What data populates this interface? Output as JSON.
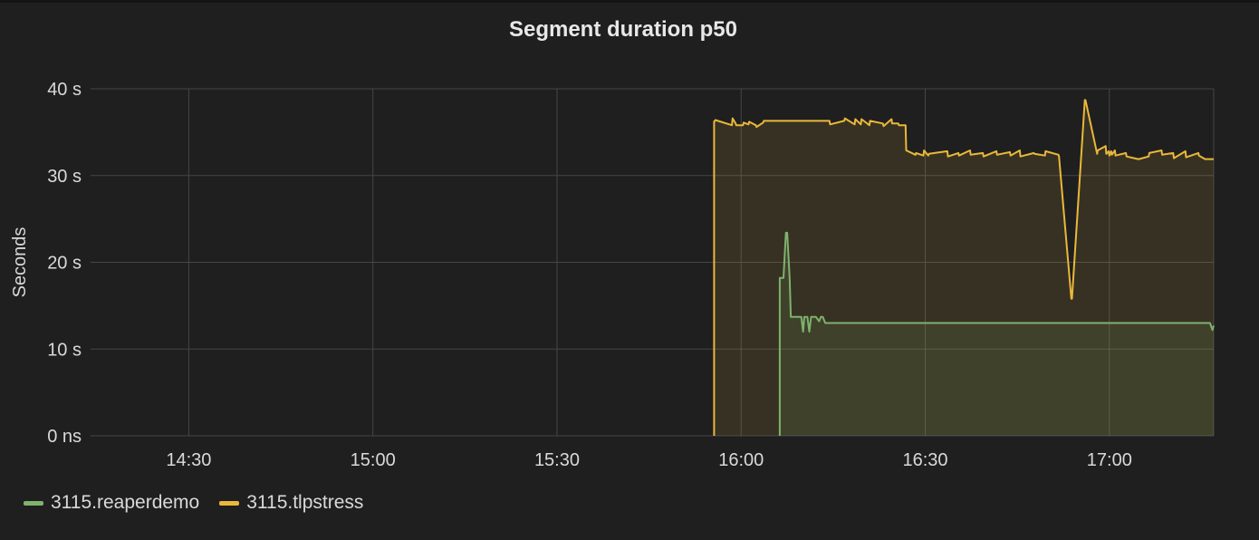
{
  "chart_data": {
    "type": "line",
    "title": "Segment duration p50",
    "ylabel": "Seconds",
    "xlabel": "",
    "y_ticks": [
      "0 ns",
      "10 s",
      "20 s",
      "30 s",
      "40 s"
    ],
    "y_tick_values": [
      0,
      10,
      20,
      30,
      40
    ],
    "x_ticks": [
      "14:30",
      "15:00",
      "15:30",
      "16:00",
      "16:30",
      "17:00"
    ],
    "x_tick_values": [
      870,
      900,
      930,
      960,
      990,
      1020
    ],
    "xlim": [
      854,
      1037
    ],
    "ylim": [
      0,
      40
    ],
    "grid": true,
    "legend_position": "bottom-left",
    "series": [
      {
        "name": "3115.tlpstress",
        "color": "#eab839",
        "fill": true,
        "x": [
          955.6,
          955.6,
          955.8,
          958.5,
          958.6,
          959.1,
          959.2,
          960.3,
          960.4,
          961.2,
          961.3,
          962.4,
          962.5,
          963.6,
          963.7,
          974.4,
          974.5,
          976.8,
          976.9,
          978.5,
          978.6,
          979.5,
          979.6,
          980.9,
          981.0,
          983.1,
          983.2,
          984.5,
          984.6,
          985.6,
          985.7,
          986.8,
          986.9,
          988.4,
          988.5,
          989.7,
          989.8,
          990.5,
          990.6,
          993.6,
          993.7,
          995.4,
          995.5,
          997.3,
          997.4,
          999.4,
          999.5,
          1001.6,
          1001.7,
          1003.8,
          1003.9,
          1005.4,
          1005.5,
          1007.7,
          1007.8,
          1009.5,
          1009.6,
          1011.7,
          1011.8,
          1013.8,
          1013.9,
          1016.0,
          1016.1,
          1018.0,
          1018.1,
          1019.4,
          1019.5,
          1019.9,
          1020.0,
          1020.3,
          1020.4,
          1020.9,
          1021.0,
          1022.7,
          1022.8,
          1024.7,
          1024.8,
          1026.4,
          1026.5,
          1028.5,
          1028.6,
          1030.4,
          1030.5,
          1032.4,
          1032.5,
          1034.5,
          1034.6,
          1035.6,
          1035.7,
          1037.0
        ],
        "values": [
          0,
          36.2,
          36.4,
          35.8,
          36.6,
          36.0,
          35.8,
          35.8,
          36.1,
          35.9,
          36.2,
          35.8,
          35.6,
          36.1,
          36.3,
          36.3,
          35.9,
          36.3,
          36.6,
          35.9,
          36.5,
          35.9,
          36.5,
          35.8,
          36.3,
          36.0,
          35.7,
          36.5,
          36.0,
          36.0,
          35.8,
          35.8,
          32.9,
          32.4,
          32.6,
          32.3,
          32.9,
          32.3,
          32.5,
          32.8,
          32.2,
          32.6,
          32.3,
          32.9,
          32.4,
          32.6,
          32.2,
          32.8,
          32.4,
          32.7,
          32.3,
          32.9,
          32.2,
          32.6,
          32.5,
          32.3,
          32.8,
          32.4,
          32.2,
          15.8,
          15.8,
          38.7,
          38.7,
          32.5,
          32.9,
          33.4,
          32.5,
          32.8,
          32.3,
          32.8,
          32.4,
          32.9,
          32.3,
          32.6,
          32.2,
          31.9,
          31.9,
          32.2,
          32.6,
          32.9,
          32.4,
          32.6,
          32.0,
          32.8,
          32.1,
          32.6,
          32.3,
          31.9,
          31.9,
          31.9
        ]
      },
      {
        "name": "3115.reaperdemo",
        "color": "#7eb26d",
        "fill": true,
        "x": [
          966.3,
          966.3,
          966.6,
          966.9,
          967.3,
          967.5,
          967.9,
          968.1,
          968.5,
          968.7,
          968.9,
          969.1,
          969.8,
          970.1,
          970.3,
          970.8,
          971.1,
          971.4,
          971.9,
          972.2,
          972.7,
          973.0,
          973.3,
          973.7,
          1036.4,
          1036.8,
          1037.0
        ],
        "values": [
          0,
          18.2,
          18.2,
          18.2,
          23.4,
          23.4,
          18.2,
          13.7,
          13.7,
          13.7,
          13.7,
          13.7,
          13.7,
          12.0,
          13.7,
          13.7,
          12.0,
          13.7,
          13.7,
          13.7,
          13.2,
          13.7,
          13.7,
          13.0,
          13.0,
          12.2,
          12.7
        ]
      }
    ]
  }
}
